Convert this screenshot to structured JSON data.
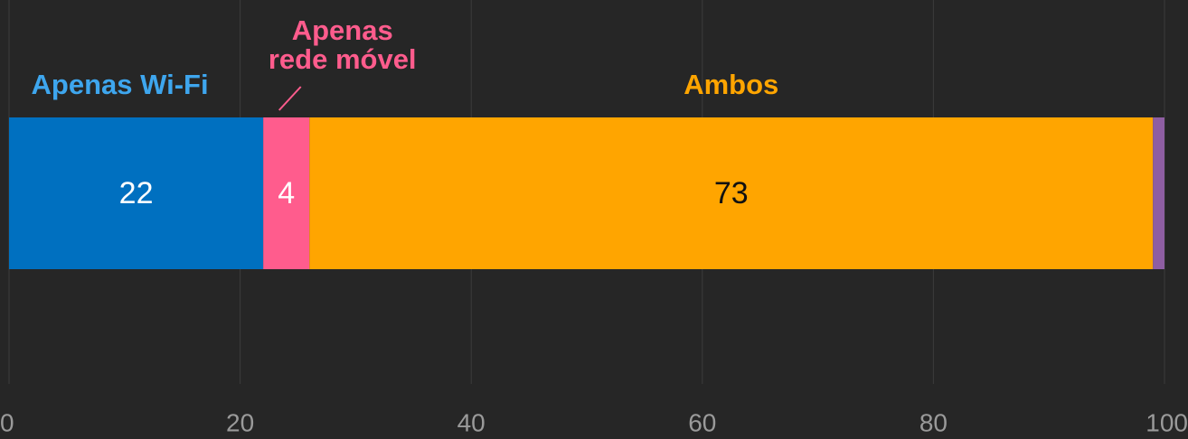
{
  "chart_data": {
    "type": "bar",
    "orientation": "horizontal",
    "stacked": true,
    "series": [
      {
        "name": "Apenas Wi-Fi",
        "color": "#0070c0",
        "label_color": "#3ea6ee",
        "text_color": "#ffffff",
        "values": [
          22
        ]
      },
      {
        "name": "Apenas rede móvel",
        "color": "#ff5c8d",
        "label_color": "#ff5c8d",
        "text_color": "#ffffff",
        "values": [
          4
        ]
      },
      {
        "name": "Ambos",
        "color": "#ffa500",
        "label_color": "#ffa500",
        "text_color": "#111111",
        "values": [
          73
        ]
      },
      {
        "color": "#8e5ea2",
        "values": [
          1
        ]
      }
    ],
    "xlim": [
      0,
      100
    ],
    "xticks": [
      0,
      20,
      40,
      60,
      80,
      100
    ],
    "grid": true
  }
}
